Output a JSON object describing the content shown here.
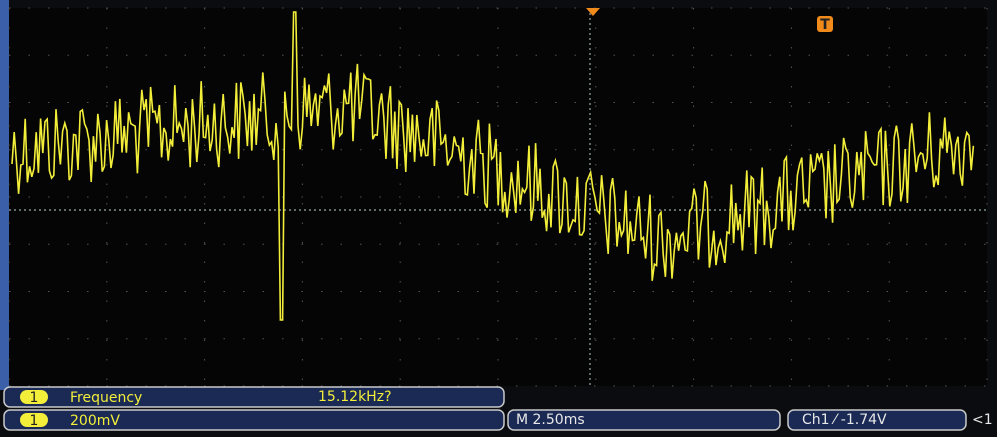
{
  "screen": {
    "trigger_marker": "T"
  },
  "measurements": [
    {
      "channel": "1",
      "label": "Frequency",
      "value": "15.12kHz?"
    }
  ],
  "status": {
    "channel": "1",
    "scale": "200mV",
    "timebase": "M 2.50ms",
    "trigger": "Ch1 ⁄ -1.74V",
    "marker": "<1"
  }
}
